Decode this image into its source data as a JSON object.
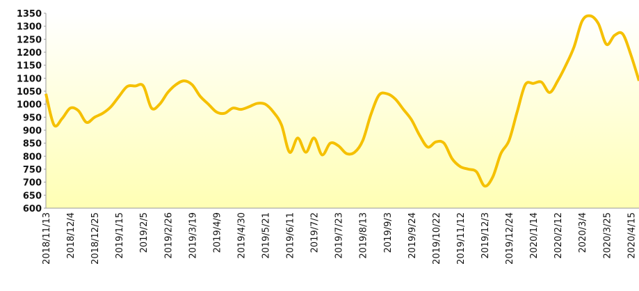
{
  "chart_data": {
    "type": "line",
    "categories": [
      "2018/11/13",
      null,
      null,
      "2018/12/4",
      null,
      null,
      "2018/12/25",
      null,
      null,
      "2019/1/15",
      null,
      null,
      "2019/2/5",
      null,
      null,
      "2019/2/26",
      null,
      null,
      "2019/3/19",
      null,
      null,
      "2019/4/9",
      null,
      null,
      "2019/4/30",
      null,
      null,
      "2019/5/21",
      null,
      null,
      "2019/6/11",
      null,
      null,
      "2019/7/2",
      null,
      null,
      "2019/7/23",
      null,
      null,
      "2019/8/13",
      null,
      null,
      "2019/9/3",
      null,
      null,
      "2019/9/24",
      null,
      null,
      "2019/10/22",
      null,
      null,
      "2019/11/12",
      null,
      null,
      "2019/12/3",
      null,
      null,
      "2019/12/24",
      null,
      null,
      "2020/1/14",
      null,
      null,
      "2020/2/12",
      null,
      null,
      "2020/3/4",
      null,
      null,
      "2020/3/25",
      null,
      null,
      "2020/4/15",
      null
    ],
    "series": [
      {
        "color": "#f5c000",
        "values": [
          1040,
          920,
          945,
          985,
          975,
          930,
          950,
          965,
          990,
          1030,
          1068,
          1070,
          1070,
          985,
          1000,
          1045,
          1075,
          1090,
          1075,
          1030,
          1000,
          970,
          965,
          985,
          980,
          990,
          1003,
          1000,
          970,
          920,
          815,
          870,
          815,
          870,
          805,
          850,
          840,
          810,
          815,
          860,
          960,
          1035,
          1040,
          1020,
          980,
          940,
          880,
          835,
          855,
          850,
          790,
          760,
          750,
          740,
          685,
          720,
          810,
          860,
          970,
          1075,
          1080,
          1085,
          1045,
          1090,
          1150,
          1220,
          1320,
          1340,
          1310,
          1230,
          1265,
          1270,
          1190,
          1090
        ]
      }
    ],
    "ylim": [
      600,
      1350
    ],
    "yticks": [
      600,
      650,
      700,
      750,
      800,
      850,
      900,
      950,
      1000,
      1050,
      1100,
      1150,
      1200,
      1250,
      1300,
      1350
    ]
  }
}
